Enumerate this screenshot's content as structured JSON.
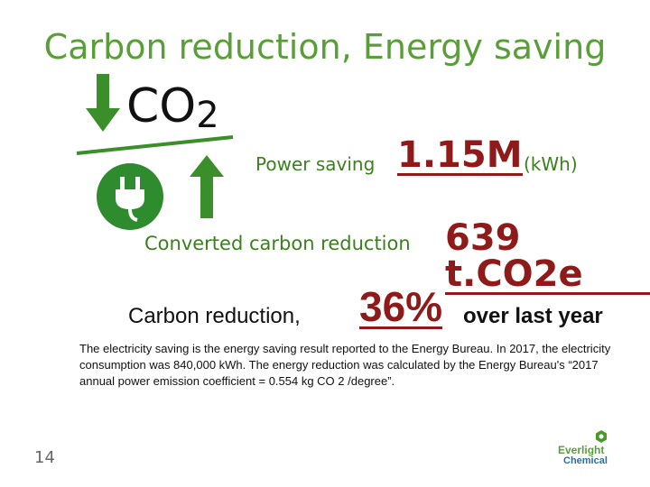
{
  "slide": {
    "title": "Carbon reduction, Energy saving",
    "co2_symbol": "CO",
    "co2_subscript": "2",
    "power_saving": {
      "label": "Power saving",
      "value": "1.15M",
      "unit": "(kWh)"
    },
    "carbon_reduction": {
      "label": "Converted carbon reduction",
      "value": "639 t.CO2e"
    },
    "yoy": {
      "label": "Carbon reduction,",
      "value": "36%",
      "suffix": "over last year"
    },
    "note": "The electricity saving is the energy saving result reported to the Energy Bureau. In 2017, the electricity consumption was 840,000 kWh. The energy reduction was calculated by the Energy Bureau's “2017 annual power emission coefficient = 0.554 kg CO 2 /degree”.",
    "page_number": "14",
    "logo": {
      "line1": "Everlight",
      "line2": "Chemical"
    },
    "colors": {
      "accent_green": "#3b8f2a",
      "value_red": "#8e1a1a"
    },
    "icons": [
      "down-arrow-icon",
      "up-arrow-icon",
      "plug-icon",
      "hexagon-logo-icon"
    ]
  }
}
